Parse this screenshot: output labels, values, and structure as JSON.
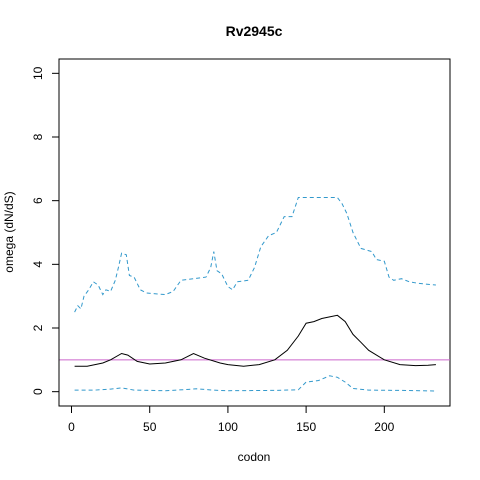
{
  "chart_data": {
    "type": "line",
    "title": "Rv2945c",
    "xlabel": "codon",
    "ylabel": "omega (dN/dS)",
    "xlim": [
      -8,
      242
    ],
    "ylim": [
      -0.45,
      10.45
    ],
    "x_ticks": [
      0,
      50,
      100,
      150,
      200
    ],
    "y_ticks": [
      0,
      2,
      4,
      6,
      8,
      10
    ],
    "reference_line": {
      "y": 1,
      "color": "#cc66cc"
    },
    "series": [
      {
        "role": "estimate",
        "color": "#000000",
        "style": "solid",
        "points": [
          [
            2,
            0.8
          ],
          [
            10,
            0.8
          ],
          [
            20,
            0.9
          ],
          [
            25,
            1.0
          ],
          [
            32,
            1.2
          ],
          [
            36,
            1.15
          ],
          [
            42,
            0.95
          ],
          [
            50,
            0.87
          ],
          [
            60,
            0.9
          ],
          [
            70,
            1.0
          ],
          [
            78,
            1.2
          ],
          [
            85,
            1.05
          ],
          [
            95,
            0.9
          ],
          [
            100,
            0.85
          ],
          [
            110,
            0.8
          ],
          [
            120,
            0.85
          ],
          [
            130,
            1.0
          ],
          [
            138,
            1.3
          ],
          [
            145,
            1.75
          ],
          [
            150,
            2.15
          ],
          [
            155,
            2.2
          ],
          [
            160,
            2.3
          ],
          [
            165,
            2.35
          ],
          [
            170,
            2.4
          ],
          [
            175,
            2.2
          ],
          [
            180,
            1.8
          ],
          [
            185,
            1.55
          ],
          [
            190,
            1.3
          ],
          [
            200,
            1.0
          ],
          [
            210,
            0.85
          ],
          [
            220,
            0.82
          ],
          [
            228,
            0.83
          ],
          [
            233,
            0.85
          ]
        ]
      },
      {
        "role": "upper-bound",
        "color": "#3399cc",
        "style": "dashed",
        "points": [
          [
            2,
            2.5
          ],
          [
            4,
            2.7
          ],
          [
            6,
            2.6
          ],
          [
            8,
            3.0
          ],
          [
            11,
            3.2
          ],
          [
            14,
            3.45
          ],
          [
            17,
            3.35
          ],
          [
            20,
            3.05
          ],
          [
            22,
            3.2
          ],
          [
            25,
            3.15
          ],
          [
            28,
            3.5
          ],
          [
            30,
            3.9
          ],
          [
            32,
            4.35
          ],
          [
            35,
            4.3
          ],
          [
            37,
            3.65
          ],
          [
            40,
            3.6
          ],
          [
            44,
            3.2
          ],
          [
            48,
            3.1
          ],
          [
            60,
            3.05
          ],
          [
            65,
            3.15
          ],
          [
            70,
            3.5
          ],
          [
            78,
            3.55
          ],
          [
            86,
            3.6
          ],
          [
            89,
            3.9
          ],
          [
            91,
            4.4
          ],
          [
            93,
            3.8
          ],
          [
            96,
            3.7
          ],
          [
            100,
            3.3
          ],
          [
            103,
            3.2
          ],
          [
            106,
            3.45
          ],
          [
            113,
            3.5
          ],
          [
            117,
            3.9
          ],
          [
            121,
            4.55
          ],
          [
            126,
            4.9
          ],
          [
            131,
            5.0
          ],
          [
            136,
            5.5
          ],
          [
            141,
            5.5
          ],
          [
            145,
            6.1
          ],
          [
            170,
            6.1
          ],
          [
            173,
            5.9
          ],
          [
            176,
            5.6
          ],
          [
            180,
            5.0
          ],
          [
            185,
            4.5
          ],
          [
            192,
            4.4
          ],
          [
            195,
            4.15
          ],
          [
            200,
            4.1
          ],
          [
            203,
            3.6
          ],
          [
            206,
            3.5
          ],
          [
            211,
            3.55
          ],
          [
            216,
            3.45
          ],
          [
            222,
            3.4
          ],
          [
            233,
            3.35
          ]
        ]
      },
      {
        "role": "lower-bound",
        "color": "#3399cc",
        "style": "dashed",
        "points": [
          [
            2,
            0.05
          ],
          [
            15,
            0.05
          ],
          [
            25,
            0.08
          ],
          [
            32,
            0.12
          ],
          [
            40,
            0.05
          ],
          [
            60,
            0.03
          ],
          [
            75,
            0.07
          ],
          [
            80,
            0.09
          ],
          [
            90,
            0.05
          ],
          [
            100,
            0.03
          ],
          [
            130,
            0.04
          ],
          [
            145,
            0.06
          ],
          [
            150,
            0.3
          ],
          [
            158,
            0.35
          ],
          [
            165,
            0.5
          ],
          [
            170,
            0.45
          ],
          [
            175,
            0.3
          ],
          [
            180,
            0.1
          ],
          [
            190,
            0.05
          ],
          [
            210,
            0.04
          ],
          [
            233,
            0.02
          ]
        ]
      }
    ]
  }
}
